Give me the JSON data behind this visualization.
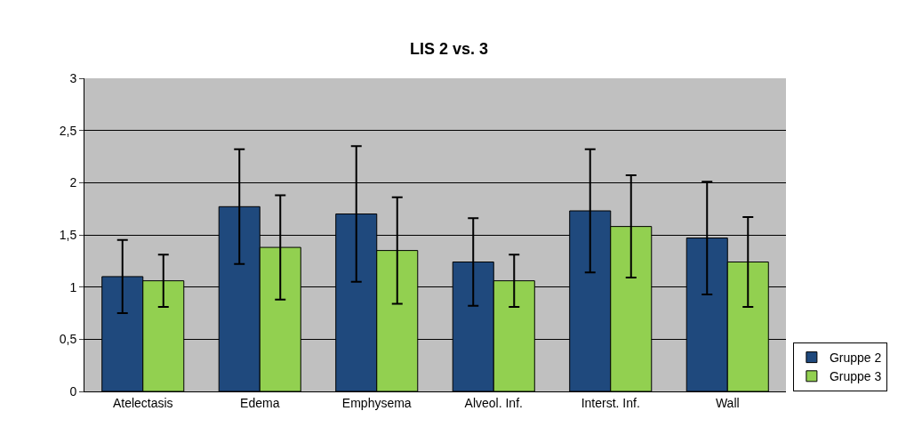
{
  "chart_data": {
    "type": "bar",
    "title": "LIS 2 vs. 3",
    "categories": [
      "Atelectasis",
      "Edema",
      "Emphysema",
      "Alveol. Inf.",
      "Interst. Inf.",
      "Wall"
    ],
    "series": [
      {
        "name": "Gruppe 2",
        "color": "#1f497d",
        "values": [
          1.1,
          1.77,
          1.7,
          1.24,
          1.73,
          1.47
        ],
        "errors": [
          0.35,
          0.55,
          0.65,
          0.42,
          0.59,
          0.54
        ]
      },
      {
        "name": "Gruppe 3",
        "color": "#92d050",
        "values": [
          1.06,
          1.38,
          1.35,
          1.06,
          1.58,
          1.24
        ],
        "errors": [
          0.25,
          0.5,
          0.51,
          0.25,
          0.49,
          0.43
        ]
      }
    ],
    "ylim": [
      0,
      3
    ],
    "yticks": [
      0,
      {
        "value": 0.5,
        "label": "0,5"
      },
      1,
      {
        "value": 1.5,
        "label": "1,5"
      },
      2,
      {
        "value": 2.5,
        "label": "2,5"
      },
      3
    ],
    "grid": "y",
    "legend": "right"
  }
}
